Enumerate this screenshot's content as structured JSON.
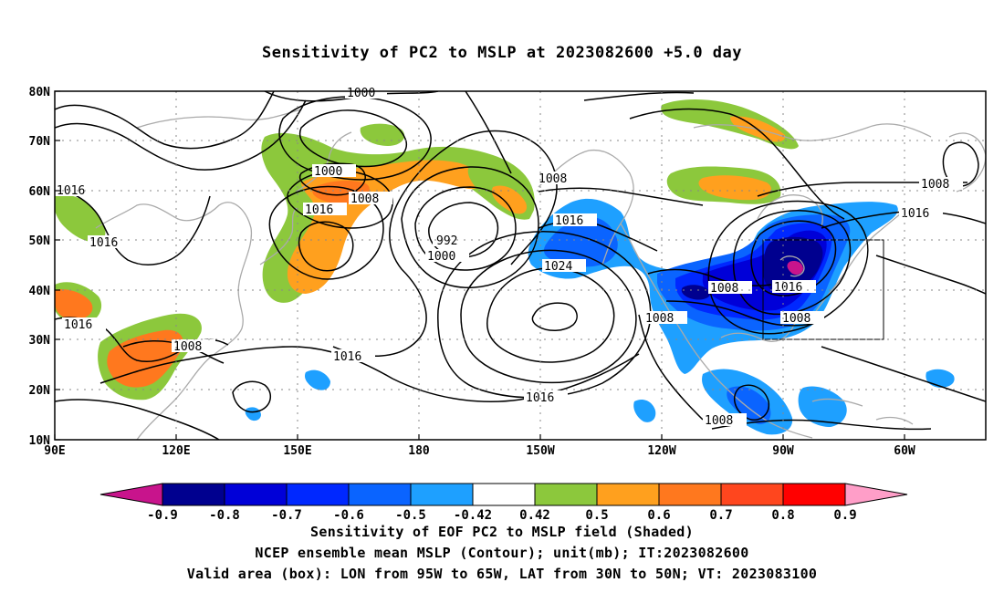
{
  "title": "Sensitivity of PC2 to MSLP at 2023082600 +5.0 day",
  "axes": {
    "lat_labels": [
      "80N",
      "70N",
      "60N",
      "50N",
      "40N",
      "30N",
      "20N",
      "10N"
    ],
    "lon_labels": [
      "90E",
      "120E",
      "150E",
      "180",
      "150W",
      "120W",
      "90W",
      "60W"
    ]
  },
  "contour_labels": {
    "c1000_top": "1000",
    "c1016_w": "1016",
    "c1016_w2": "1016",
    "c1016_sw": "1016",
    "c1000_a": "1000",
    "c1008_a": "1008",
    "c1016_a": "1016",
    "c992": "992",
    "c1000_b": "1000",
    "c1008_b": "1008",
    "c1016_b": "1016",
    "c1024": "1024",
    "c1008_c": "1008",
    "c1016_c": "1016",
    "c1016_d": "1016",
    "c1008_d": "1008",
    "c1016_e": "1016",
    "c1008_e": "1008",
    "c1008_f": "1008",
    "c1008_g": "1008",
    "c1008_h": "1008",
    "c1016_f": "1016"
  },
  "colorbar": {
    "labels": [
      "-0.9",
      "-0.8",
      "-0.7",
      "-0.6",
      "-0.5",
      "-0.42",
      "0.42",
      "0.5",
      "0.6",
      "0.7",
      "0.8",
      "0.9"
    ],
    "colors": [
      "#00008f",
      "#0000d8",
      "#0028ff",
      "#0a64ff",
      "#1ea0ff",
      "#ffffff",
      "#8cc83c",
      "#ffa01e",
      "#ff781e",
      "#ff461e",
      "#ff0000"
    ],
    "low_end": "#c8148c",
    "high_end": "#ff9ec8"
  },
  "captions": {
    "line1": "Sensitivity of EOF PC2 to MSLP field (Shaded)",
    "line2": "NCEP ensemble mean MSLP (Contour); unit(mb); IT:2023082600",
    "line3": "Valid area (box): LON from 95W to 65W, LAT from 30N to 50N; VT: 2023083100"
  }
}
